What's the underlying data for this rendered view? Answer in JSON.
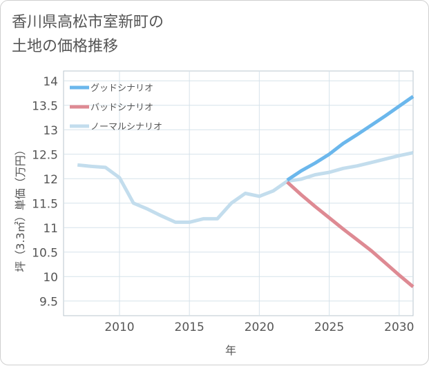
{
  "chart_data": {
    "type": "line",
    "title": "香川県高松市室新町の\n土地の価格推移",
    "xlabel": "年",
    "ylabel": "坪（3.3㎡）単価（万円）",
    "xlim": [
      2006,
      2031
    ],
    "ylim": [
      9.2,
      14.2
    ],
    "x_ticks": [
      2010,
      2015,
      2020,
      2025,
      2030
    ],
    "y_ticks": [
      9.5,
      10,
      10.5,
      11,
      11.5,
      12,
      12.5,
      13,
      13.5,
      14
    ],
    "grid": true,
    "legend": "top-left",
    "series": [
      {
        "name": "グッドシナリオ",
        "color": "#6bb7ec",
        "x": [
          2022,
          2023,
          2024,
          2025,
          2026,
          2027,
          2028,
          2029,
          2030,
          2031
        ],
        "values": [
          11.97,
          12.16,
          12.32,
          12.5,
          12.72,
          12.9,
          13.09,
          13.28,
          13.48,
          13.68
        ]
      },
      {
        "name": "バッドシナリオ",
        "color": "#de8a93",
        "x": [
          2022,
          2023,
          2024,
          2025,
          2026,
          2027,
          2028,
          2029,
          2030,
          2031
        ],
        "values": [
          11.93,
          11.67,
          11.43,
          11.2,
          10.97,
          10.75,
          10.53,
          10.28,
          10.03,
          9.79
        ]
      },
      {
        "name": "ノーマルシナリオ",
        "color": "#c3dded",
        "x": [
          2007,
          2008,
          2009,
          2010,
          2011,
          2012,
          2013,
          2014,
          2015,
          2016,
          2017,
          2018,
          2019,
          2020,
          2021,
          2022,
          2023,
          2024,
          2025,
          2026,
          2027,
          2028,
          2029,
          2030,
          2031
        ],
        "values": [
          12.28,
          12.25,
          12.23,
          12.02,
          11.5,
          11.38,
          11.24,
          11.11,
          11.11,
          11.18,
          11.18,
          11.5,
          11.7,
          11.64,
          11.75,
          11.95,
          11.99,
          12.08,
          12.13,
          12.21,
          12.26,
          12.33,
          12.4,
          12.47,
          12.53
        ]
      }
    ]
  }
}
